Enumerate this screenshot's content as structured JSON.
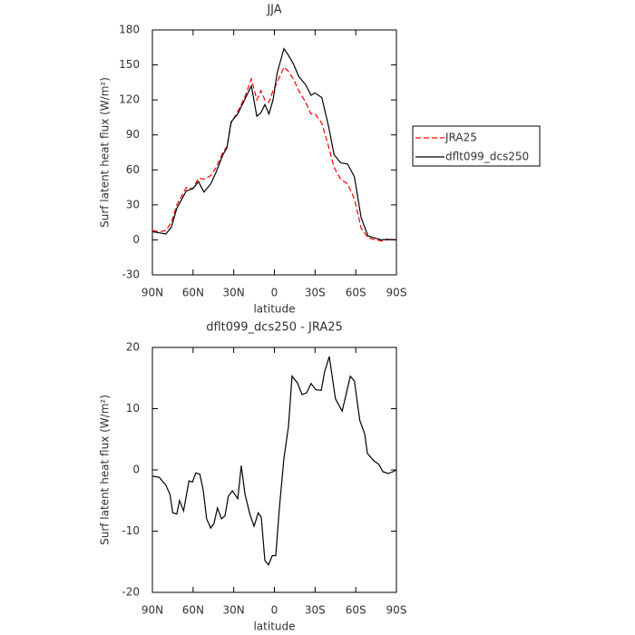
{
  "chart_data": [
    {
      "type": "line",
      "title": "JJA",
      "xlabel": "latitude",
      "ylabel": "Surf latent heat flux (W/m²)",
      "x": [
        90,
        85,
        80,
        76,
        72,
        65,
        60,
        56,
        52,
        47,
        43,
        38,
        35,
        32,
        27,
        22,
        17,
        13,
        10,
        7,
        4,
        1,
        -2,
        -7,
        -10,
        -14,
        -18,
        -23,
        -27,
        -30,
        -35,
        -40,
        -44,
        -49,
        -54,
        -59,
        -64,
        -69,
        -73,
        -79,
        -83,
        -90
      ],
      "series": [
        {
          "name": "JRA25",
          "color": "#ff0000",
          "linestyle": "dashed",
          "values": [
            8,
            7,
            8,
            15,
            30,
            45,
            44,
            53,
            52,
            55,
            62,
            75,
            80,
            100,
            110,
            122,
            138,
            120,
            128,
            120,
            118,
            128,
            135,
            148,
            145,
            138,
            128,
            118,
            108,
            108,
            100,
            80,
            62,
            52,
            48,
            35,
            10,
            2,
            0.5,
            -1,
            0,
            0
          ]
        },
        {
          "name": "dflt099_dcs250",
          "color": "#000000",
          "linestyle": "solid",
          "values": [
            7,
            6,
            5,
            11,
            27,
            42,
            44,
            50,
            41,
            48,
            58,
            73,
            79,
            101,
            108,
            120,
            132,
            106,
            109,
            116,
            108,
            120,
            143,
            164,
            159,
            151,
            140,
            133,
            124,
            126,
            122,
            97,
            73,
            66,
            65,
            54,
            19,
            3.5,
            2,
            0,
            0.5,
            0
          ]
        }
      ],
      "xlim": [
        90,
        -90
      ],
      "xticks": [
        {
          "value": 90,
          "label": "90N"
        },
        {
          "value": 60,
          "label": "60N"
        },
        {
          "value": 30,
          "label": "30N"
        },
        0,
        {
          "value": -30,
          "label": "30S"
        },
        {
          "value": -60,
          "label": "60S"
        },
        {
          "value": -90,
          "label": "90S"
        }
      ],
      "ylim": [
        -30,
        180
      ],
      "yticks": [
        -30,
        0,
        30,
        60,
        90,
        120,
        150,
        180
      ],
      "legend": "right"
    },
    {
      "type": "line",
      "title": "dflt099_dcs250 - JRA25",
      "xlabel": "latitude",
      "ylabel": "Surf latent heat flux (W/m²)",
      "x": [
        90,
        85,
        80,
        77,
        75,
        72,
        70,
        67,
        63,
        60.5,
        58,
        55,
        52.5,
        50,
        47,
        44.5,
        42,
        39,
        36.5,
        34,
        31,
        27,
        24.4,
        21.7,
        18,
        15,
        12,
        9.7,
        7,
        4.3,
        1.6,
        -1,
        -3.7,
        -7,
        -10.4,
        -13,
        -17,
        -20.4,
        -23.8,
        -27,
        -30.5,
        -34.5,
        -37,
        -40.5,
        -45,
        -50,
        -56,
        -59,
        -63,
        -66.6,
        -68.6,
        -73.3,
        -77,
        -80,
        -84,
        -87.4,
        -90
      ],
      "series": [
        {
          "color": "#000000",
          "linestyle": "solid",
          "values": [
            -1,
            -1.2,
            -2.5,
            -4,
            -7,
            -7.2,
            -5,
            -6.7,
            -1.8,
            -2,
            -0.5,
            -0.7,
            -3.3,
            -8,
            -9.5,
            -8.7,
            -6.2,
            -8,
            -7.5,
            -4.3,
            -3.4,
            -4.7,
            0.7,
            -4,
            -7.3,
            -9.2,
            -7,
            -7.7,
            -14.8,
            -15.5,
            -14,
            -14,
            -6.2,
            1.9,
            7.1,
            15.3,
            14.2,
            12.3,
            12.6,
            14.1,
            13.1,
            13,
            16,
            18.5,
            11.6,
            9.6,
            15.3,
            14.5,
            8.1,
            5.9,
            2.7,
            1.5,
            0.9,
            -0.3,
            -0.6,
            -0.3,
            0
          ]
        }
      ],
      "xlim": [
        90,
        -90
      ],
      "xticks": [
        {
          "value": 90,
          "label": "90N"
        },
        {
          "value": 60,
          "label": "60N"
        },
        {
          "value": 30,
          "label": "30N"
        },
        0,
        {
          "value": -30,
          "label": "30S"
        },
        {
          "value": -60,
          "label": "60S"
        },
        {
          "value": -90,
          "label": "90S"
        }
      ],
      "ylim": [
        -20,
        20
      ],
      "yticks": [
        -20,
        -10,
        0,
        10,
        20
      ]
    }
  ]
}
